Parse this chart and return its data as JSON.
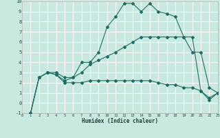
{
  "xlabel": "Humidex (Indice chaleur)",
  "bg_color": "#c8e8e0",
  "grid_color": "#ffffff",
  "line_color": "#1a6e64",
  "xlim": [
    0,
    23
  ],
  "ylim": [
    -1,
    10
  ],
  "xticks": [
    0,
    1,
    2,
    3,
    4,
    5,
    6,
    7,
    8,
    9,
    10,
    11,
    12,
    13,
    14,
    15,
    16,
    17,
    18,
    19,
    20,
    21,
    22,
    23
  ],
  "yticks": [
    -1,
    0,
    1,
    2,
    3,
    4,
    5,
    6,
    7,
    8,
    9,
    10
  ],
  "line1_x": [
    1,
    2,
    3,
    4,
    5,
    6,
    7,
    8,
    9,
    10,
    11,
    12,
    13,
    14,
    15,
    16,
    17,
    18,
    19,
    20,
    21,
    22,
    23
  ],
  "line1_y": [
    -1,
    2.5,
    3.0,
    3.0,
    2.5,
    2.5,
    4.0,
    4.0,
    5.0,
    7.5,
    8.5,
    9.8,
    9.8,
    9.0,
    9.8,
    9.0,
    8.8,
    8.5,
    6.5,
    6.5,
    1.2,
    0.3,
    1.0
  ],
  "line2_x": [
    1,
    2,
    3,
    4,
    5,
    6,
    7,
    8,
    9,
    10,
    11,
    12,
    13,
    14,
    15,
    16,
    17,
    18,
    19,
    20,
    21,
    22,
    23
  ],
  "line2_y": [
    -1,
    2.5,
    3.0,
    2.8,
    2.2,
    2.5,
    3.0,
    3.8,
    4.2,
    4.6,
    5.0,
    5.5,
    6.0,
    6.5,
    6.5,
    6.5,
    6.5,
    6.5,
    6.5,
    5.0,
    5.0,
    1.5,
    1.0
  ],
  "line3_x": [
    1,
    2,
    3,
    4,
    5,
    6,
    7,
    8,
    9,
    10,
    11,
    12,
    13,
    14,
    15,
    16,
    17,
    18,
    19,
    20,
    21,
    22,
    23
  ],
  "line3_y": [
    -1,
    2.5,
    3.0,
    2.8,
    2.0,
    2.0,
    2.0,
    2.2,
    2.2,
    2.2,
    2.2,
    2.2,
    2.2,
    2.2,
    2.2,
    2.0,
    1.8,
    1.8,
    1.5,
    1.5,
    1.2,
    0.5,
    1.0
  ]
}
